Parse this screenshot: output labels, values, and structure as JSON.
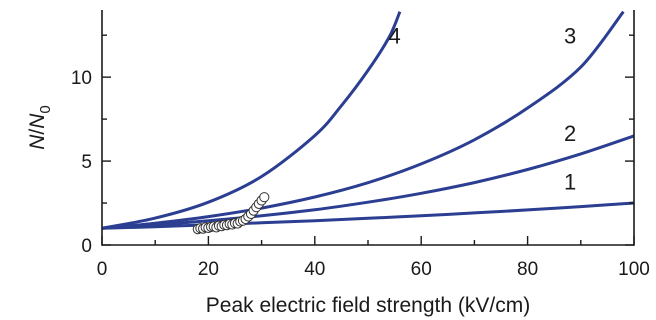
{
  "chart_data": {
    "type": "line",
    "xlabel": "Peak electric field strength (kV/cm)",
    "ylabel": {
      "italic_main": "N",
      "slash": "/",
      "italic_sub_base": "N",
      "subscript": "0"
    },
    "xlim": [
      0,
      100
    ],
    "ylim": [
      0,
      14
    ],
    "x_ticks": [
      0,
      20,
      40,
      60,
      80,
      100
    ],
    "x_tick_labels": [
      "0",
      "20",
      "40",
      "60",
      "80",
      "100"
    ],
    "x_minor_ticks": [
      10,
      30,
      50,
      70,
      90
    ],
    "y_ticks": [
      0,
      5,
      10
    ],
    "y_tick_labels": [
      "0",
      "5",
      "10"
    ],
    "y_minor_ticks": [
      2.5,
      7.5,
      12.5
    ],
    "grid": false,
    "colors": {
      "curve": "#2b3e92",
      "axes": "#1a1a1a",
      "points_fill": "#ffffff",
      "points_stroke": "#333333"
    },
    "series": [
      {
        "name": "1",
        "label_at": [
          88,
          3.3
        ],
        "x": [
          0,
          10,
          20,
          30,
          40,
          50,
          60,
          70,
          80,
          90,
          100
        ],
        "y": [
          1.0,
          1.09,
          1.2,
          1.32,
          1.45,
          1.59,
          1.74,
          1.91,
          2.09,
          2.29,
          2.5
        ]
      },
      {
        "name": "2",
        "label_at": [
          88,
          6.2
        ],
        "x": [
          0,
          10,
          20,
          30,
          40,
          50,
          60,
          70,
          80,
          90,
          100
        ],
        "y": [
          1.0,
          1.2,
          1.45,
          1.74,
          2.1,
          2.55,
          3.08,
          3.72,
          4.5,
          5.43,
          6.5
        ]
      },
      {
        "name": "3",
        "label_at": [
          88,
          12.0
        ],
        "x": [
          0,
          10,
          20,
          30,
          40,
          50,
          60,
          70,
          80,
          90,
          98
        ],
        "y": [
          1.0,
          1.3,
          1.69,
          2.2,
          2.86,
          3.71,
          4.83,
          6.27,
          8.16,
          10.6,
          13.9
        ]
      },
      {
        "name": "4",
        "label_at": [
          55,
          12.0
        ],
        "x": [
          0,
          10,
          20,
          30,
          40,
          45,
          50,
          54,
          56
        ],
        "y": [
          1.0,
          1.6,
          2.55,
          4.08,
          6.52,
          8.3,
          10.4,
          12.4,
          13.9
        ]
      }
    ],
    "scatter": {
      "x": [
        18,
        18.5,
        19,
        19.5,
        20,
        20.5,
        21,
        21.5,
        22,
        22.5,
        23,
        23.5,
        24,
        24.5,
        25,
        25.5,
        26,
        26.5,
        27,
        27.5,
        28,
        28.5,
        29,
        29.5,
        30,
        30.5
      ],
      "y": [
        0.95,
        1.0,
        0.98,
        1.05,
        1.02,
        1.08,
        1.1,
        1.05,
        1.15,
        1.12,
        1.2,
        1.18,
        1.25,
        1.22,
        1.3,
        1.28,
        1.4,
        1.45,
        1.55,
        1.7,
        1.85,
        2.05,
        2.25,
        2.45,
        2.65,
        2.85
      ]
    }
  }
}
